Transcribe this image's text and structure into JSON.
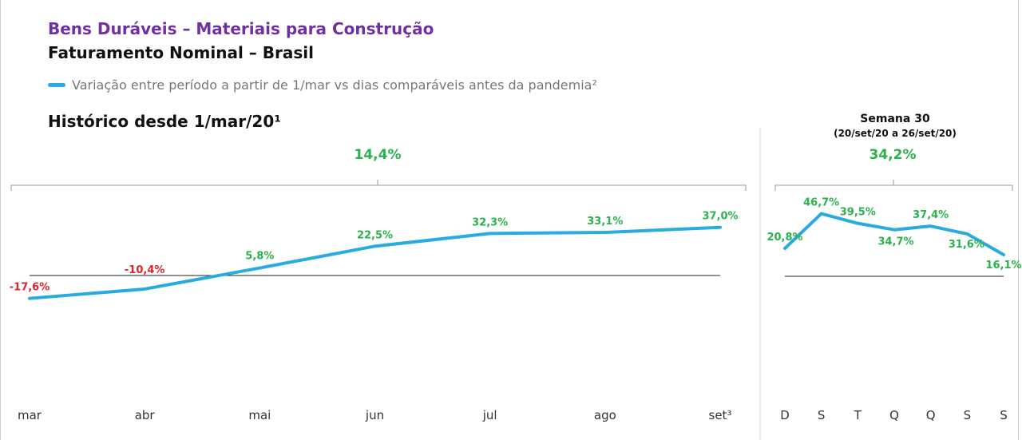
{
  "header": {
    "title": "Bens Duráveis – Materiais para Construção",
    "subtitle": "Faturamento Nominal – Brasil",
    "legend": "Variação entre período a partir de 1/mar vs dias comparáveis antes da pandemia²",
    "history_title": "Histórico desde 1/mar/20¹",
    "week_title": "Semana 30",
    "week_subtitle": "(20/set/20 a 26/set/20)"
  },
  "colors": {
    "line": "#29abe2",
    "positive": "#2bb24c",
    "negative": "#e0202a",
    "title": "#7030a0"
  },
  "chart_data": [
    {
      "type": "line",
      "name": "Histórico",
      "categories": [
        "mar",
        "abr",
        "mai",
        "jun",
        "jul",
        "ago",
        "set³"
      ],
      "values": [
        -17.6,
        -10.4,
        5.8,
        22.5,
        32.3,
        33.1,
        37.0
      ],
      "labels": [
        "-17,6%",
        "-10,4%",
        "5,8%",
        "22,5%",
        "32,3%",
        "33,1%",
        "37,0%"
      ],
      "summary": "14,4%",
      "baseline": 0
    },
    {
      "type": "line",
      "name": "Semana 30",
      "categories": [
        "D",
        "S",
        "T",
        "Q",
        "Q",
        "S",
        "S"
      ],
      "values": [
        20.8,
        46.7,
        39.5,
        34.7,
        37.4,
        31.6,
        16.1
      ],
      "labels": [
        "20,8%",
        "46,7%",
        "39,5%",
        "34,7%",
        "37,4%",
        "31,6%",
        "16,1%"
      ],
      "summary": "34,2%",
      "baseline": 0
    }
  ]
}
